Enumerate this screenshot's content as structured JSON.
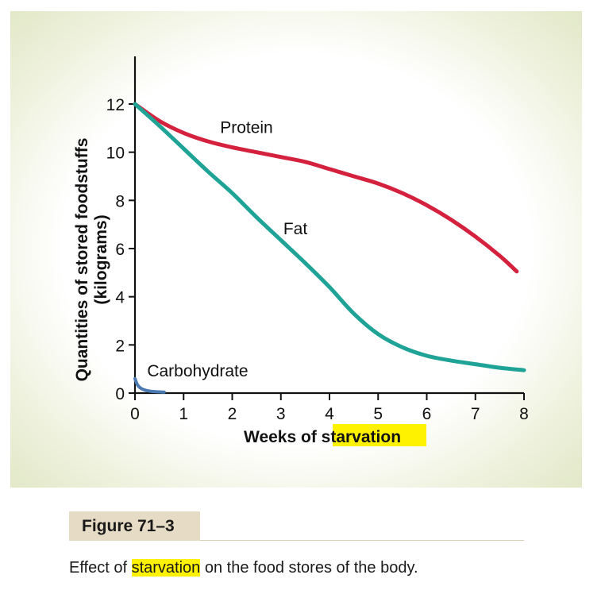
{
  "chart_data": {
    "type": "line",
    "xlabel_prefix": "Weeks of ",
    "xlabel_highlight": "starvation",
    "ylabel_line1": "Quantities of stored foodstuffs",
    "ylabel_line2": "(kilograms)",
    "xlim": [
      0,
      8
    ],
    "ylim": [
      0,
      14
    ],
    "x_ticks": [
      0,
      1,
      2,
      3,
      4,
      5,
      6,
      7,
      8
    ],
    "y_ticks": [
      0,
      2,
      4,
      6,
      8,
      10,
      12
    ],
    "grid": false,
    "series": [
      {
        "name": "Protein",
        "color": "#d4213d",
        "label_at": [
          1.75,
          10.8
        ],
        "points": [
          [
            0,
            12
          ],
          [
            0.5,
            11.3
          ],
          [
            1,
            10.8
          ],
          [
            1.5,
            10.45
          ],
          [
            2,
            10.2
          ],
          [
            2.5,
            10.0
          ],
          [
            3,
            9.8
          ],
          [
            3.5,
            9.6
          ],
          [
            4,
            9.3
          ],
          [
            4.5,
            9.0
          ],
          [
            5,
            8.7
          ],
          [
            5.5,
            8.3
          ],
          [
            6,
            7.8
          ],
          [
            6.5,
            7.2
          ],
          [
            7,
            6.5
          ],
          [
            7.5,
            5.7
          ],
          [
            7.85,
            5.05
          ]
        ]
      },
      {
        "name": "Fat",
        "color": "#1fa396",
        "label_at": [
          3.05,
          6.6
        ],
        "points": [
          [
            0,
            12
          ],
          [
            0.5,
            11.1
          ],
          [
            1,
            10.15
          ],
          [
            1.5,
            9.2
          ],
          [
            2,
            8.3
          ],
          [
            2.5,
            7.3
          ],
          [
            3,
            6.35
          ],
          [
            3.5,
            5.4
          ],
          [
            4,
            4.4
          ],
          [
            4.5,
            3.3
          ],
          [
            5,
            2.45
          ],
          [
            5.5,
            1.9
          ],
          [
            6,
            1.55
          ],
          [
            6.5,
            1.35
          ],
          [
            7,
            1.2
          ],
          [
            7.5,
            1.05
          ],
          [
            8,
            0.95
          ]
        ]
      },
      {
        "name": "Carbohydrate",
        "color": "#4a78b0",
        "label_at": [
          0.25,
          0.7
        ],
        "points": [
          [
            0,
            0.6
          ],
          [
            0.05,
            0.35
          ],
          [
            0.12,
            0.2
          ],
          [
            0.25,
            0.1
          ],
          [
            0.4,
            0.06
          ],
          [
            0.6,
            0.04
          ]
        ]
      }
    ]
  },
  "figure": {
    "label": "Figure 71–3",
    "caption_prefix": "Effect of ",
    "caption_highlight": "starvation",
    "caption_suffix": " on the food stores of the body."
  }
}
